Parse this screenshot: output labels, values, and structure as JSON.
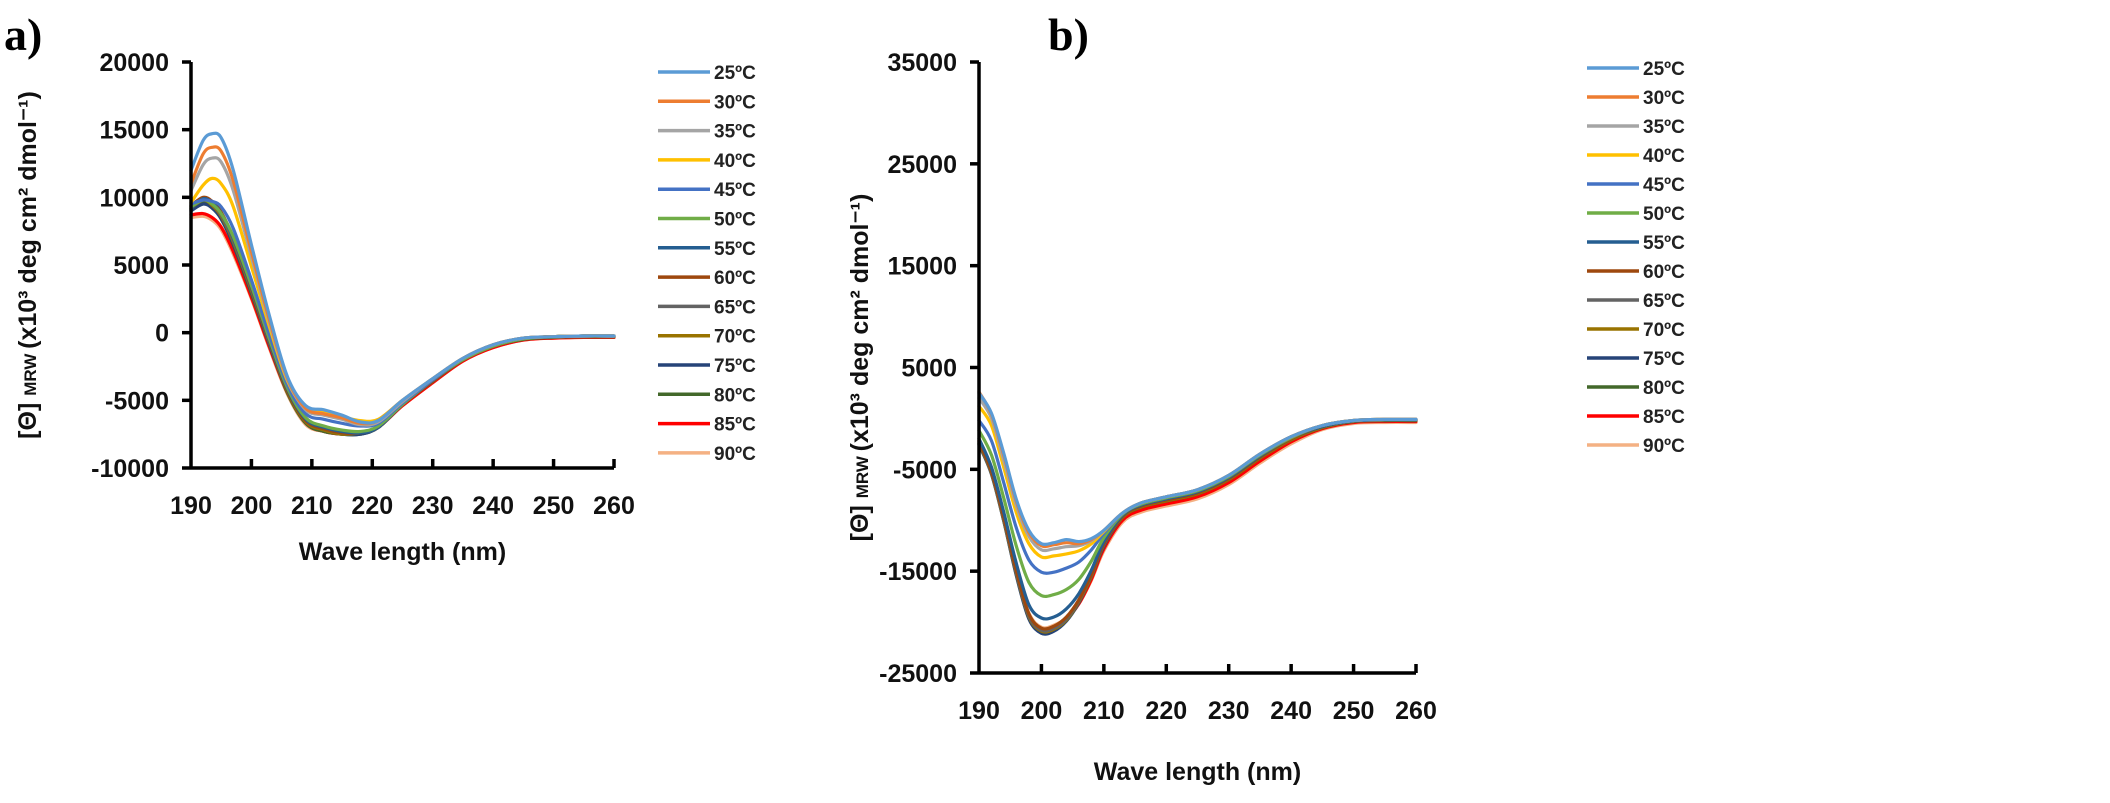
{
  "figure": {
    "panels": [
      "a)",
      "b)"
    ]
  },
  "chart_data": [
    {
      "type": "line",
      "panel": "a)",
      "title": "",
      "xlabel": "Wave length (nm)",
      "ylabel_main": "[Θ]",
      "ylabel_sub": "MRW",
      "ylabel_rest": "(x10³ deg cm² dmol⁻¹)",
      "xlim": [
        190,
        260
      ],
      "ylim": [
        -10000,
        20000
      ],
      "xticks": [
        "190",
        "200",
        "210",
        "220",
        "230",
        "240",
        "250",
        "260"
      ],
      "yticks": [
        "20000",
        "15000",
        "10000",
        "5000",
        "0",
        "-5000",
        "-10000"
      ],
      "grid": false,
      "legend_position": "right",
      "x": [
        190,
        192,
        193.5,
        195,
        197,
        200,
        203,
        206,
        209,
        212,
        215,
        218,
        221,
        225,
        230,
        235,
        240,
        245,
        250,
        255,
        260
      ],
      "series": [
        {
          "name": "25ºC",
          "color": "#5b9bd5",
          "values": [
            12000,
            14200,
            14700,
            14400,
            12000,
            6500,
            1200,
            -3300,
            -5400,
            -5700,
            -6100,
            -6600,
            -6500,
            -5000,
            -3400,
            -1900,
            -900,
            -400,
            -300,
            -250,
            -250
          ]
        },
        {
          "name": "30ºC",
          "color": "#ed7d31",
          "values": [
            11000,
            13200,
            13700,
            13400,
            11200,
            6000,
            900,
            -3400,
            -5600,
            -6000,
            -6300,
            -6700,
            -6500,
            -5000,
            -3400,
            -1900,
            -900,
            -400,
            -300,
            -250,
            -250
          ]
        },
        {
          "name": "35ºC",
          "color": "#a5a5a5",
          "values": [
            10500,
            12400,
            12900,
            12600,
            10500,
            5600,
            700,
            -3500,
            -5700,
            -6100,
            -6400,
            -6800,
            -6600,
            -5100,
            -3400,
            -1900,
            -900,
            -400,
            -300,
            -250,
            -250
          ]
        },
        {
          "name": "40ºC",
          "color": "#ffc000",
          "values": [
            9600,
            10900,
            11400,
            11000,
            9300,
            4900,
            400,
            -3600,
            -5600,
            -5900,
            -6200,
            -6500,
            -6400,
            -5000,
            -3400,
            -1900,
            -900,
            -400,
            -300,
            -250,
            -250
          ]
        },
        {
          "name": "45ºC",
          "color": "#4472c4",
          "values": [
            9500,
            9800,
            9700,
            9300,
            7700,
            3900,
            -200,
            -3900,
            -6000,
            -6400,
            -6700,
            -6900,
            -6700,
            -5200,
            -3500,
            -1900,
            -900,
            -400,
            -300,
            -250,
            -250
          ]
        },
        {
          "name": "50ºC",
          "color": "#70ad47",
          "values": [
            9300,
            9800,
            9500,
            8800,
            7100,
            3500,
            -500,
            -4100,
            -6300,
            -6900,
            -7200,
            -7300,
            -6900,
            -5300,
            -3500,
            -2000,
            -1000,
            -450,
            -300,
            -250,
            -250
          ]
        },
        {
          "name": "55ºC",
          "color": "#255e91",
          "values": [
            9200,
            9900,
            9600,
            8800,
            7000,
            3400,
            -600,
            -4200,
            -6400,
            -7000,
            -7300,
            -7400,
            -7000,
            -5300,
            -3500,
            -2000,
            -1000,
            -450,
            -300,
            -250,
            -250
          ]
        },
        {
          "name": "60ºC",
          "color": "#9e480e",
          "values": [
            9400,
            10000,
            9700,
            8900,
            7000,
            3300,
            -700,
            -4300,
            -6500,
            -7100,
            -7400,
            -7400,
            -7000,
            -5300,
            -3600,
            -2000,
            -1000,
            -450,
            -300,
            -250,
            -250
          ]
        },
        {
          "name": "65ºC",
          "color": "#636363",
          "values": [
            9300,
            9900,
            9500,
            8700,
            6800,
            3200,
            -800,
            -4300,
            -6500,
            -7100,
            -7400,
            -7400,
            -7000,
            -5300,
            -3600,
            -2000,
            -1000,
            -450,
            -300,
            -250,
            -250
          ]
        },
        {
          "name": "70ºC",
          "color": "#997300",
          "values": [
            9200,
            9800,
            9400,
            8600,
            6700,
            3100,
            -800,
            -4400,
            -6600,
            -7200,
            -7500,
            -7400,
            -7000,
            -5300,
            -3600,
            -2000,
            -1000,
            -450,
            -300,
            -300,
            -300
          ]
        },
        {
          "name": "75ºC",
          "color": "#264478",
          "values": [
            9000,
            9500,
            9200,
            8400,
            6500,
            3000,
            -900,
            -4400,
            -6600,
            -7200,
            -7500,
            -7500,
            -7000,
            -5300,
            -3600,
            -2000,
            -1000,
            -450,
            -300,
            -300,
            -300
          ]
        },
        {
          "name": "80ºC",
          "color": "#43682b",
          "values": [
            9100,
            9700,
            9300,
            8400,
            6500,
            2900,
            -900,
            -4500,
            -6700,
            -7300,
            -7500,
            -7500,
            -7000,
            -5300,
            -3600,
            -2000,
            -1000,
            -500,
            -350,
            -300,
            -300
          ]
        },
        {
          "name": "85ºC",
          "color": "#ff0000",
          "values": [
            8700,
            8800,
            8500,
            7800,
            6000,
            2600,
            -1100,
            -4500,
            -6700,
            -7300,
            -7500,
            -7400,
            -7000,
            -5400,
            -3700,
            -2100,
            -1100,
            -550,
            -400,
            -350,
            -350
          ]
        },
        {
          "name": "90ºC",
          "color": "#f4b183",
          "values": [
            8500,
            8600,
            8300,
            7600,
            5800,
            2500,
            -1200,
            -4600,
            -6800,
            -7300,
            -7500,
            -7400,
            -7000,
            -5400,
            -3700,
            -2100,
            -1100,
            -550,
            -400,
            -350,
            -350
          ]
        }
      ]
    },
    {
      "type": "line",
      "panel": "b)",
      "title": "",
      "xlabel": "Wave length (nm)",
      "ylabel_main": "[Θ]",
      "ylabel_sub": "MRW",
      "ylabel_rest": "(x10³ deg cm² dmol⁻¹)",
      "xlim": [
        190,
        260
      ],
      "ylim": [
        -25000,
        35000
      ],
      "xticks": [
        "190",
        "200",
        "210",
        "220",
        "230",
        "240",
        "250",
        "260"
      ],
      "yticks": [
        "35000",
        "25000",
        "15000",
        "5000",
        "-5000",
        "-15000",
        "-25000"
      ],
      "grid": false,
      "legend_position": "right",
      "x": [
        190,
        192,
        194,
        196,
        198,
        200,
        202,
        204,
        206,
        208,
        210,
        213,
        216,
        220,
        225,
        230,
        235,
        240,
        245,
        250,
        255,
        260
      ],
      "series": [
        {
          "name": "25ºC",
          "color": "#5b9bd5",
          "values": [
            2500,
            500,
            -3500,
            -8000,
            -11000,
            -12300,
            -12200,
            -11900,
            -12100,
            -11800,
            -11000,
            -9300,
            -8300,
            -7700,
            -7000,
            -5600,
            -3500,
            -1800,
            -700,
            -200,
            -100,
            -100
          ]
        },
        {
          "name": "30ºC",
          "color": "#ed7d31",
          "values": [
            2600,
            400,
            -3700,
            -8200,
            -11200,
            -12500,
            -12400,
            -12200,
            -12300,
            -11900,
            -11000,
            -9300,
            -8300,
            -7700,
            -7000,
            -5600,
            -3500,
            -1800,
            -700,
            -200,
            -100,
            -100
          ]
        },
        {
          "name": "35ºC",
          "color": "#a5a5a5",
          "values": [
            2000,
            0,
            -4200,
            -8600,
            -11600,
            -12900,
            -12800,
            -12600,
            -12500,
            -12000,
            -11000,
            -9300,
            -8300,
            -7700,
            -7000,
            -5600,
            -3500,
            -1800,
            -700,
            -200,
            -100,
            -100
          ]
        },
        {
          "name": "40ºC",
          "color": "#ffc000",
          "values": [
            1200,
            -700,
            -4900,
            -9300,
            -12300,
            -13600,
            -13500,
            -13300,
            -13000,
            -12300,
            -11100,
            -9300,
            -8300,
            -7700,
            -7000,
            -5600,
            -3500,
            -1800,
            -700,
            -200,
            -100,
            -100
          ]
        },
        {
          "name": "45ºC",
          "color": "#4472c4",
          "values": [
            -200,
            -2200,
            -6400,
            -10800,
            -13900,
            -15100,
            -15100,
            -14700,
            -14100,
            -12900,
            -11300,
            -9300,
            -8300,
            -7700,
            -7000,
            -5600,
            -3500,
            -1800,
            -700,
            -200,
            -100,
            -100
          ]
        },
        {
          "name": "50ºC",
          "color": "#70ad47",
          "values": [
            -1200,
            -3600,
            -7900,
            -12600,
            -16100,
            -17400,
            -17300,
            -16800,
            -15800,
            -14000,
            -11700,
            -9400,
            -8400,
            -7800,
            -7100,
            -5700,
            -3600,
            -1900,
            -700,
            -200,
            -100,
            -100
          ]
        },
        {
          "name": "55ºC",
          "color": "#255e91",
          "values": [
            -2000,
            -4800,
            -9300,
            -14300,
            -18300,
            -19600,
            -19500,
            -18700,
            -17200,
            -14900,
            -12100,
            -9500,
            -8500,
            -7900,
            -7200,
            -5800,
            -3700,
            -1900,
            -800,
            -250,
            -150,
            -150
          ]
        },
        {
          "name": "60ºC",
          "color": "#9e480e",
          "values": [
            -2300,
            -5200,
            -9800,
            -15000,
            -19200,
            -20600,
            -20400,
            -19500,
            -17800,
            -15300,
            -12300,
            -9600,
            -8600,
            -8000,
            -7300,
            -5900,
            -3800,
            -2000,
            -800,
            -250,
            -150,
            -150
          ]
        },
        {
          "name": "65ºC",
          "color": "#636363",
          "values": [
            -2400,
            -5300,
            -10000,
            -15200,
            -19400,
            -20800,
            -20600,
            -19700,
            -17900,
            -15400,
            -12400,
            -9600,
            -8600,
            -8000,
            -7300,
            -5900,
            -3800,
            -2000,
            -800,
            -250,
            -150,
            -150
          ]
        },
        {
          "name": "70ºC",
          "color": "#997300",
          "values": [
            -2500,
            -5400,
            -10100,
            -15300,
            -19500,
            -20900,
            -20700,
            -19800,
            -18000,
            -15500,
            -12400,
            -9700,
            -8700,
            -8100,
            -7400,
            -6000,
            -3900,
            -2100,
            -900,
            -300,
            -200,
            -200
          ]
        },
        {
          "name": "75ºC",
          "color": "#264478",
          "values": [
            -2600,
            -5500,
            -10200,
            -15500,
            -19700,
            -21100,
            -20900,
            -19900,
            -18100,
            -15500,
            -12500,
            -9700,
            -8700,
            -8100,
            -7400,
            -6000,
            -3900,
            -2100,
            -900,
            -300,
            -200,
            -200
          ]
        },
        {
          "name": "80ºC",
          "color": "#43682b",
          "values": [
            -2500,
            -5400,
            -10100,
            -15400,
            -19600,
            -21000,
            -20800,
            -19800,
            -18000,
            -15500,
            -12500,
            -9700,
            -8700,
            -8100,
            -7400,
            -6000,
            -3900,
            -2100,
            -900,
            -300,
            -200,
            -200
          ]
        },
        {
          "name": "85ºC",
          "color": "#ff0000",
          "values": [
            -2200,
            -5100,
            -9800,
            -15100,
            -19300,
            -20700,
            -20500,
            -19700,
            -18200,
            -15800,
            -12800,
            -10000,
            -9000,
            -8400,
            -7700,
            -6300,
            -4200,
            -2300,
            -1000,
            -400,
            -300,
            -300
          ]
        },
        {
          "name": "90ºC",
          "color": "#f4b183",
          "values": [
            -2000,
            -4900,
            -9600,
            -14900,
            -19100,
            -20500,
            -20300,
            -19600,
            -18200,
            -15900,
            -13000,
            -10200,
            -9200,
            -8600,
            -7900,
            -6500,
            -4400,
            -2500,
            -1100,
            -500,
            -400,
            -400
          ]
        }
      ]
    }
  ]
}
